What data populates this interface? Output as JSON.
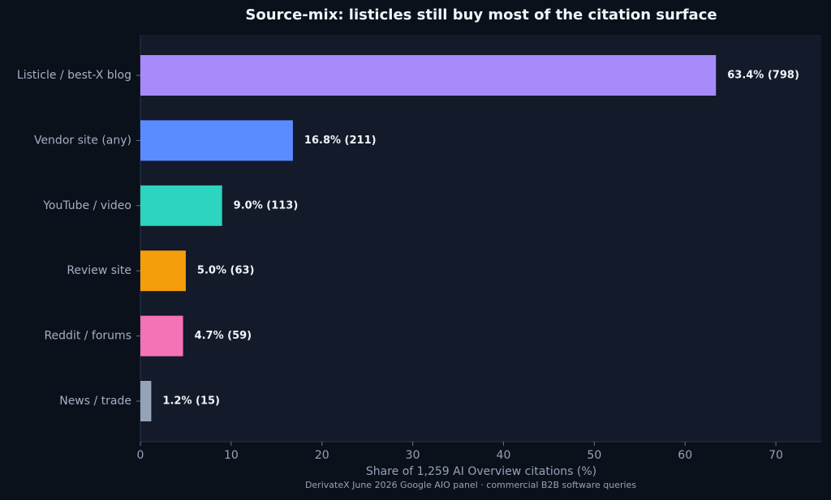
{
  "chart_data": {
    "type": "bar",
    "orientation": "horizontal",
    "title": "Source-mix: listicles still buy most of the citation surface",
    "x_label": "Share of 1,259 AI Overview citations (%)",
    "source": "DerivateX June 2026 Google AIO panel · commercial B2B software queries",
    "categories": [
      "Listicle / best-X blog",
      "Vendor site (any)",
      "YouTube / video",
      "Review site",
      "Reddit / forums",
      "News / trade"
    ],
    "values": [
      63.4,
      16.8,
      9.0,
      5.0,
      4.7,
      1.2
    ],
    "value_labels": [
      "63.4%  (798)",
      "16.8%  (211)",
      "9.0%  (113)",
      "5.0%  (63)",
      "4.7%  (59)",
      "1.2%  (15)"
    ],
    "colors": [
      "#a78bfa",
      "#5b8cff",
      "#2dd4bf",
      "#f59e0b",
      "#f472b6",
      "#94a3b8"
    ],
    "xlim": [
      0,
      75
    ],
    "xticks": [
      0,
      10,
      20,
      30,
      40,
      50,
      60,
      70
    ],
    "grid": false
  }
}
